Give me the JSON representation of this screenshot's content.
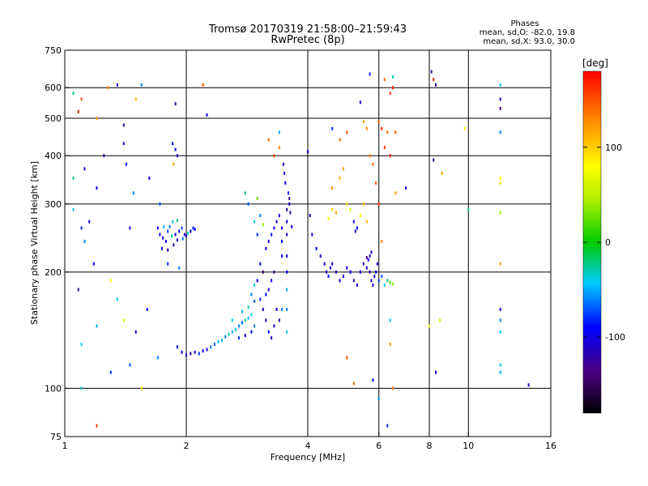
{
  "chart_data": {
    "type": "scatter",
    "title_line1": "Tromsø 20170319 21:58:00–21:59:43",
    "title_line2": "RwPretec (8p)",
    "xlabel": "Frequency [MHz]",
    "ylabel": "Stationary phase Virtual Height [km]",
    "x_scale": "log",
    "y_scale": "log",
    "xlim": [
      1,
      16
    ],
    "ylim": [
      75,
      750
    ],
    "x_ticks": [
      1,
      2,
      4,
      6,
      8,
      10,
      16
    ],
    "x_tick_labels": [
      "1",
      "2",
      "4",
      "6",
      "8",
      "10",
      "16"
    ],
    "y_ticks": [
      75,
      100,
      200,
      300,
      400,
      500,
      600,
      750
    ],
    "y_tick_labels": [
      "75",
      "100",
      "200",
      "300",
      "400",
      "500",
      "600",
      "750"
    ],
    "grid_x": [
      2,
      4,
      6,
      8,
      10
    ],
    "grid_y": [
      100,
      200,
      300,
      400,
      500,
      600
    ],
    "stats": {
      "title": "Phases",
      "line1": "mean, sd,O: -82.0, 19.8",
      "line2": "mean, sd,X:  93.0, 30.0"
    },
    "colorbar": {
      "unit": "[deg]",
      "range": [
        -180,
        180
      ],
      "tick_values": [
        100,
        0,
        -100
      ],
      "tick_labels": [
        "100",
        "0",
        "-100"
      ]
    },
    "points": [
      [
        1.1,
        260,
        -80
      ],
      [
        1.12,
        240,
        -60
      ],
      [
        1.15,
        270,
        -100
      ],
      [
        1.18,
        210,
        -90
      ],
      [
        1.05,
        290,
        -40
      ],
      [
        1.08,
        180,
        -120
      ],
      [
        1.12,
        370,
        -110
      ],
      [
        1.2,
        330,
        -100
      ],
      [
        1.1,
        560,
        150
      ],
      [
        1.08,
        520,
        170
      ],
      [
        1.2,
        500,
        120
      ],
      [
        1.28,
        600,
        130
      ],
      [
        1.35,
        610,
        -100
      ],
      [
        1.4,
        430,
        -110
      ],
      [
        1.4,
        480,
        -120
      ],
      [
        1.42,
        380,
        -90
      ],
      [
        1.55,
        610,
        -60
      ],
      [
        1.5,
        560,
        110
      ],
      [
        1.62,
        350,
        -100
      ],
      [
        1.2,
        145,
        -50
      ],
      [
        1.1,
        130,
        -40
      ],
      [
        1.3,
        110,
        -80
      ],
      [
        1.45,
        115,
        -70
      ],
      [
        1.5,
        140,
        -100
      ],
      [
        1.3,
        190,
        80
      ],
      [
        1.35,
        170,
        -40
      ],
      [
        1.4,
        150,
        60
      ],
      [
        1.1,
        100,
        -30
      ],
      [
        1.2,
        80,
        160
      ],
      [
        1.55,
        100,
        80
      ],
      [
        1.6,
        160,
        -90
      ],
      [
        1.7,
        120,
        -60
      ],
      [
        1.05,
        350,
        -20
      ],
      [
        1.25,
        400,
        -130
      ],
      [
        1.45,
        260,
        -110
      ],
      [
        1.48,
        320,
        -60
      ],
      [
        1.05,
        580,
        -20
      ],
      [
        1.72,
        300,
        -70
      ],
      [
        1.7,
        260,
        -100
      ],
      [
        1.72,
        250,
        -90
      ],
      [
        1.75,
        245,
        -110
      ],
      [
        1.78,
        240,
        -100
      ],
      [
        1.8,
        255,
        -80
      ],
      [
        1.82,
        262,
        -60
      ],
      [
        1.85,
        270,
        -40
      ],
      [
        1.88,
        250,
        -100
      ],
      [
        1.9,
        242,
        -110
      ],
      [
        1.92,
        255,
        -90
      ],
      [
        1.95,
        260,
        -70
      ],
      [
        1.98,
        250,
        -100
      ],
      [
        2.0,
        248,
        -110
      ],
      [
        2.05,
        255,
        -95
      ],
      [
        2.08,
        260,
        -80
      ],
      [
        1.76,
        262,
        -50
      ],
      [
        1.84,
        248,
        -30
      ],
      [
        1.86,
        235,
        -120
      ],
      [
        1.9,
        272,
        -20
      ],
      [
        1.96,
        244,
        -60
      ],
      [
        2.02,
        252,
        -40
      ],
      [
        2.1,
        258,
        -90
      ],
      [
        1.74,
        230,
        -100
      ],
      [
        1.8,
        228,
        -120
      ],
      [
        1.85,
        430,
        -90
      ],
      [
        1.88,
        415,
        -100
      ],
      [
        1.9,
        400,
        -110
      ],
      [
        1.86,
        380,
        120
      ],
      [
        1.88,
        545,
        -120
      ],
      [
        1.8,
        210,
        -80
      ],
      [
        1.92,
        205,
        -60
      ],
      [
        1.9,
        128,
        -90
      ],
      [
        1.95,
        124,
        -100
      ],
      [
        2.0,
        122,
        -110
      ],
      [
        2.05,
        123,
        -120
      ],
      [
        2.1,
        124,
        -100
      ],
      [
        2.15,
        123,
        -80
      ],
      [
        2.2,
        125,
        -90
      ],
      [
        2.25,
        126,
        -100
      ],
      [
        2.3,
        128,
        -60
      ],
      [
        2.35,
        130,
        -70
      ],
      [
        2.4,
        132,
        -40
      ],
      [
        2.45,
        133,
        -50
      ],
      [
        2.5,
        136,
        -60
      ],
      [
        2.55,
        138,
        -30
      ],
      [
        2.6,
        140,
        -50
      ],
      [
        2.65,
        142,
        -40
      ],
      [
        2.7,
        145,
        -60
      ],
      [
        2.75,
        148,
        -70
      ],
      [
        2.8,
        150,
        -30
      ],
      [
        2.85,
        152,
        -50
      ],
      [
        2.9,
        155,
        -40
      ],
      [
        2.7,
        135,
        -80
      ],
      [
        2.8,
        137,
        -100
      ],
      [
        2.9,
        140,
        -90
      ],
      [
        2.95,
        145,
        -60
      ],
      [
        2.6,
        150,
        -40
      ],
      [
        2.75,
        158,
        -50
      ],
      [
        2.85,
        162,
        -30
      ],
      [
        2.95,
        168,
        -70
      ],
      [
        2.9,
        175,
        -60
      ],
      [
        2.95,
        185,
        -40
      ],
      [
        3.0,
        190,
        -100
      ],
      [
        3.05,
        170,
        -80
      ],
      [
        3.1,
        160,
        -110
      ],
      [
        3.15,
        150,
        -100
      ],
      [
        3.2,
        140,
        -90
      ],
      [
        3.25,
        135,
        -120
      ],
      [
        3.3,
        145,
        -110
      ],
      [
        3.35,
        160,
        -100
      ],
      [
        3.4,
        150,
        -120
      ],
      [
        3.15,
        175,
        -90
      ],
      [
        3.2,
        180,
        -110
      ],
      [
        3.25,
        190,
        -100
      ],
      [
        3.3,
        200,
        -130
      ],
      [
        3.1,
        200,
        -150
      ],
      [
        3.05,
        210,
        -90
      ],
      [
        3.15,
        230,
        -100
      ],
      [
        3.2,
        240,
        -110
      ],
      [
        3.25,
        250,
        -90
      ],
      [
        3.3,
        260,
        -100
      ],
      [
        3.35,
        270,
        -120
      ],
      [
        3.4,
        280,
        -110
      ],
      [
        3.1,
        265,
        40
      ],
      [
        3.05,
        280,
        -60
      ],
      [
        3.0,
        250,
        -80
      ],
      [
        2.95,
        270,
        -40
      ],
      [
        2.85,
        300,
        -70
      ],
      [
        2.8,
        320,
        -20
      ],
      [
        3.0,
        310,
        30
      ],
      [
        3.55,
        140,
        -40
      ],
      [
        3.55,
        160,
        -60
      ],
      [
        3.55,
        180,
        -50
      ],
      [
        3.55,
        200,
        -90
      ],
      [
        3.55,
        220,
        -100
      ],
      [
        3.55,
        250,
        -110
      ],
      [
        3.55,
        270,
        -100
      ],
      [
        3.55,
        290,
        -120
      ],
      [
        3.6,
        300,
        -110
      ],
      [
        3.58,
        320,
        -100
      ],
      [
        3.52,
        340,
        -90
      ],
      [
        3.5,
        360,
        -110
      ],
      [
        3.48,
        380,
        -100
      ],
      [
        3.6,
        310,
        -130
      ],
      [
        3.62,
        285,
        -120
      ],
      [
        3.65,
        262,
        -110
      ],
      [
        3.45,
        240,
        -90
      ],
      [
        3.45,
        260,
        -100
      ],
      [
        3.45,
        220,
        -100
      ],
      [
        3.45,
        160,
        -60
      ],
      [
        3.4,
        460,
        -50
      ],
      [
        3.2,
        440,
        140
      ],
      [
        3.3,
        400,
        150
      ],
      [
        3.4,
        420,
        130
      ],
      [
        2.2,
        610,
        150
      ],
      [
        2.25,
        510,
        -100
      ],
      [
        4.0,
        410,
        -100
      ],
      [
        4.05,
        280,
        -110
      ],
      [
        4.1,
        250,
        -100
      ],
      [
        4.2,
        230,
        -90
      ],
      [
        4.3,
        220,
        -110
      ],
      [
        4.4,
        210,
        -100
      ],
      [
        4.45,
        200,
        -110
      ],
      [
        4.5,
        195,
        -90
      ],
      [
        4.55,
        205,
        -100
      ],
      [
        4.6,
        210,
        -110
      ],
      [
        4.7,
        200,
        -120
      ],
      [
        4.8,
        190,
        -100
      ],
      [
        4.9,
        195,
        -110
      ],
      [
        5.0,
        205,
        -100
      ],
      [
        5.1,
        200,
        -90
      ],
      [
        5.2,
        190,
        -120
      ],
      [
        5.3,
        185,
        -110
      ],
      [
        5.4,
        200,
        -100
      ],
      [
        5.5,
        210,
        -120
      ],
      [
        5.6,
        205,
        -110
      ],
      [
        5.65,
        215,
        -100
      ],
      [
        5.7,
        200,
        -120
      ],
      [
        5.75,
        190,
        -110
      ],
      [
        5.8,
        185,
        -100
      ],
      [
        5.85,
        195,
        -110
      ],
      [
        5.9,
        200,
        -90
      ],
      [
        5.95,
        210,
        -100
      ],
      [
        6.0,
        190,
        -80
      ],
      [
        6.1,
        195,
        -70
      ],
      [
        6.2,
        185,
        -40
      ],
      [
        6.3,
        190,
        -20
      ],
      [
        6.4,
        188,
        20
      ],
      [
        6.5,
        186,
        40
      ],
      [
        5.6,
        218,
        -130
      ],
      [
        5.7,
        220,
        -120
      ],
      [
        5.75,
        225,
        -110
      ],
      [
        4.5,
        275,
        80
      ],
      [
        4.6,
        290,
        100
      ],
      [
        4.7,
        285,
        120
      ],
      [
        4.6,
        330,
        130
      ],
      [
        4.8,
        350,
        110
      ],
      [
        4.9,
        370,
        120
      ],
      [
        5.0,
        300,
        90
      ],
      [
        5.1,
        290,
        70
      ],
      [
        5.2,
        270,
        -100
      ],
      [
        5.25,
        255,
        -110
      ],
      [
        5.3,
        260,
        -90
      ],
      [
        5.4,
        280,
        80
      ],
      [
        5.5,
        300,
        100
      ],
      [
        5.6,
        270,
        110
      ],
      [
        4.6,
        470,
        -80
      ],
      [
        4.8,
        440,
        140
      ],
      [
        5.0,
        460,
        150
      ],
      [
        5.6,
        470,
        130
      ],
      [
        5.4,
        550,
        -110
      ],
      [
        5.5,
        490,
        120
      ],
      [
        6.0,
        490,
        150
      ],
      [
        6.1,
        470,
        170
      ],
      [
        6.2,
        420,
        160
      ],
      [
        6.3,
        460,
        140
      ],
      [
        6.4,
        400,
        170
      ],
      [
        6.2,
        630,
        140
      ],
      [
        6.4,
        580,
        160
      ],
      [
        6.5,
        640,
        -30
      ],
      [
        6.6,
        320,
        120
      ],
      [
        5.7,
        650,
        -80
      ],
      [
        5.8,
        380,
        140
      ],
      [
        5.9,
        340,
        150
      ],
      [
        6.0,
        300,
        160
      ],
      [
        6.1,
        240,
        130
      ],
      [
        6.5,
        600,
        170
      ],
      [
        6.6,
        460,
        150
      ],
      [
        5.7,
        400,
        130
      ],
      [
        6.3,
        80,
        -80
      ],
      [
        6.4,
        130,
        120
      ],
      [
        6.4,
        150,
        -40
      ],
      [
        6.0,
        94,
        -60
      ],
      [
        5.2,
        103,
        140
      ],
      [
        5.8,
        105,
        -90
      ],
      [
        6.5,
        100,
        130
      ],
      [
        5.0,
        120,
        150
      ],
      [
        7.0,
        330,
        -110
      ],
      [
        8.1,
        660,
        -130
      ],
      [
        8.2,
        630,
        170
      ],
      [
        8.3,
        610,
        -120
      ],
      [
        8.2,
        390,
        -110
      ],
      [
        8.6,
        360,
        120
      ],
      [
        8.0,
        145,
        80
      ],
      [
        8.5,
        150,
        60
      ],
      [
        8.3,
        110,
        -100
      ],
      [
        9.8,
        470,
        80
      ],
      [
        10.0,
        290,
        -20
      ],
      [
        12.0,
        610,
        -40
      ],
      [
        12.0,
        530,
        -130
      ],
      [
        12.0,
        560,
        -120
      ],
      [
        12.0,
        460,
        -60
      ],
      [
        12.0,
        350,
        80
      ],
      [
        12.0,
        340,
        90
      ],
      [
        12.0,
        285,
        40
      ],
      [
        12.0,
        210,
        120
      ],
      [
        12.0,
        160,
        -110
      ],
      [
        12.0,
        150,
        -60
      ],
      [
        12.0,
        140,
        -40
      ],
      [
        12.0,
        115,
        -40
      ],
      [
        12.0,
        110,
        -50
      ],
      [
        14.1,
        102,
        -120
      ]
    ]
  }
}
